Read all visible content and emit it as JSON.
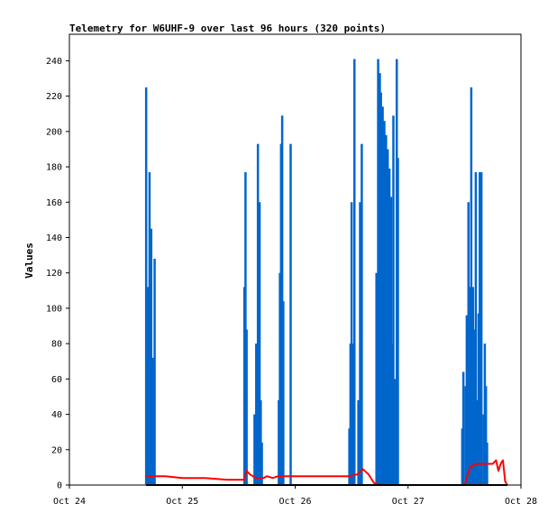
{
  "chart_data": {
    "type": "bar",
    "title": "Telemetry for W6UHF-9 over last 96 hours (320 points)",
    "xlabel": "",
    "ylabel": "Values",
    "xlim": [
      0,
      4
    ],
    "ylim": [
      0,
      255
    ],
    "grid": false,
    "x_ticks": [
      {
        "x": 0,
        "label": "Oct 24"
      },
      {
        "x": 1,
        "label": "Oct 25"
      },
      {
        "x": 2,
        "label": "Oct 26"
      },
      {
        "x": 3,
        "label": "Oct 27"
      },
      {
        "x": 4,
        "label": "Oct 28"
      }
    ],
    "y_ticks": [
      0,
      20,
      40,
      60,
      80,
      100,
      120,
      140,
      160,
      180,
      200,
      220,
      240
    ],
    "series": [
      {
        "type": "bar",
        "color": "#0066cc",
        "points": [
          [
            0.68,
            225
          ],
          [
            0.695,
            112
          ],
          [
            0.71,
            177
          ],
          [
            0.725,
            145
          ],
          [
            0.74,
            72
          ],
          [
            0.755,
            128
          ],
          [
            1.55,
            112
          ],
          [
            1.56,
            177
          ],
          [
            1.57,
            88
          ],
          [
            1.64,
            40
          ],
          [
            1.655,
            80
          ],
          [
            1.67,
            193
          ],
          [
            1.685,
            160
          ],
          [
            1.695,
            48
          ],
          [
            1.705,
            24
          ],
          [
            1.855,
            48
          ],
          [
            1.865,
            120
          ],
          [
            1.875,
            193
          ],
          [
            1.885,
            209
          ],
          [
            1.895,
            104
          ],
          [
            1.96,
            193
          ],
          [
            2.48,
            32
          ],
          [
            2.49,
            80
          ],
          [
            2.5,
            160
          ],
          [
            2.51,
            80
          ],
          [
            2.525,
            241
          ],
          [
            2.56,
            48
          ],
          [
            2.575,
            160
          ],
          [
            2.59,
            193
          ],
          [
            2.72,
            120
          ],
          [
            2.735,
            241
          ],
          [
            2.75,
            233
          ],
          [
            2.76,
            222
          ],
          [
            2.775,
            214
          ],
          [
            2.79,
            206
          ],
          [
            2.805,
            198
          ],
          [
            2.82,
            190
          ],
          [
            2.835,
            179
          ],
          [
            2.85,
            163
          ],
          [
            2.86,
            80
          ],
          [
            2.87,
            209
          ],
          [
            2.88,
            60
          ],
          [
            2.9,
            241
          ],
          [
            2.91,
            185
          ],
          [
            3.48,
            32
          ],
          [
            3.49,
            64
          ],
          [
            3.51,
            56
          ],
          [
            3.52,
            96
          ],
          [
            3.535,
            160
          ],
          [
            3.55,
            112
          ],
          [
            3.56,
            225
          ],
          [
            3.575,
            112
          ],
          [
            3.585,
            88
          ],
          [
            3.6,
            177
          ],
          [
            3.61,
            48
          ],
          [
            3.625,
            97
          ],
          [
            3.635,
            177
          ],
          [
            3.65,
            177
          ],
          [
            3.67,
            40
          ],
          [
            3.68,
            80
          ],
          [
            3.69,
            56
          ],
          [
            3.7,
            24
          ]
        ]
      },
      {
        "type": "line",
        "color": "#ff0000",
        "points": [
          [
            0.68,
            5
          ],
          [
            0.75,
            5
          ],
          [
            0.85,
            5
          ],
          [
            1.0,
            4
          ],
          [
            1.2,
            4
          ],
          [
            1.4,
            3
          ],
          [
            1.55,
            3
          ],
          [
            1.57,
            8
          ],
          [
            1.6,
            6
          ],
          [
            1.65,
            4
          ],
          [
            1.72,
            4
          ],
          [
            1.75,
            5
          ],
          [
            1.8,
            4
          ],
          [
            1.85,
            5
          ],
          [
            1.95,
            5
          ],
          [
            2.1,
            5
          ],
          [
            2.3,
            5
          ],
          [
            2.48,
            5
          ],
          [
            2.55,
            6
          ],
          [
            2.6,
            9
          ],
          [
            2.65,
            6
          ],
          [
            2.7,
            1
          ],
          [
            2.8,
            0
          ],
          [
            3.0,
            0
          ],
          [
            3.3,
            0
          ],
          [
            3.5,
            0
          ],
          [
            3.55,
            10
          ],
          [
            3.6,
            12
          ],
          [
            3.65,
            12
          ],
          [
            3.7,
            12
          ],
          [
            3.75,
            12
          ],
          [
            3.78,
            14
          ],
          [
            3.8,
            8
          ],
          [
            3.82,
            12
          ],
          [
            3.84,
            14
          ],
          [
            3.86,
            2
          ],
          [
            3.88,
            0
          ]
        ]
      },
      {
        "type": "line",
        "color": "#000000",
        "points": [
          [
            0.68,
            0
          ],
          [
            3.88,
            0
          ]
        ]
      }
    ]
  }
}
